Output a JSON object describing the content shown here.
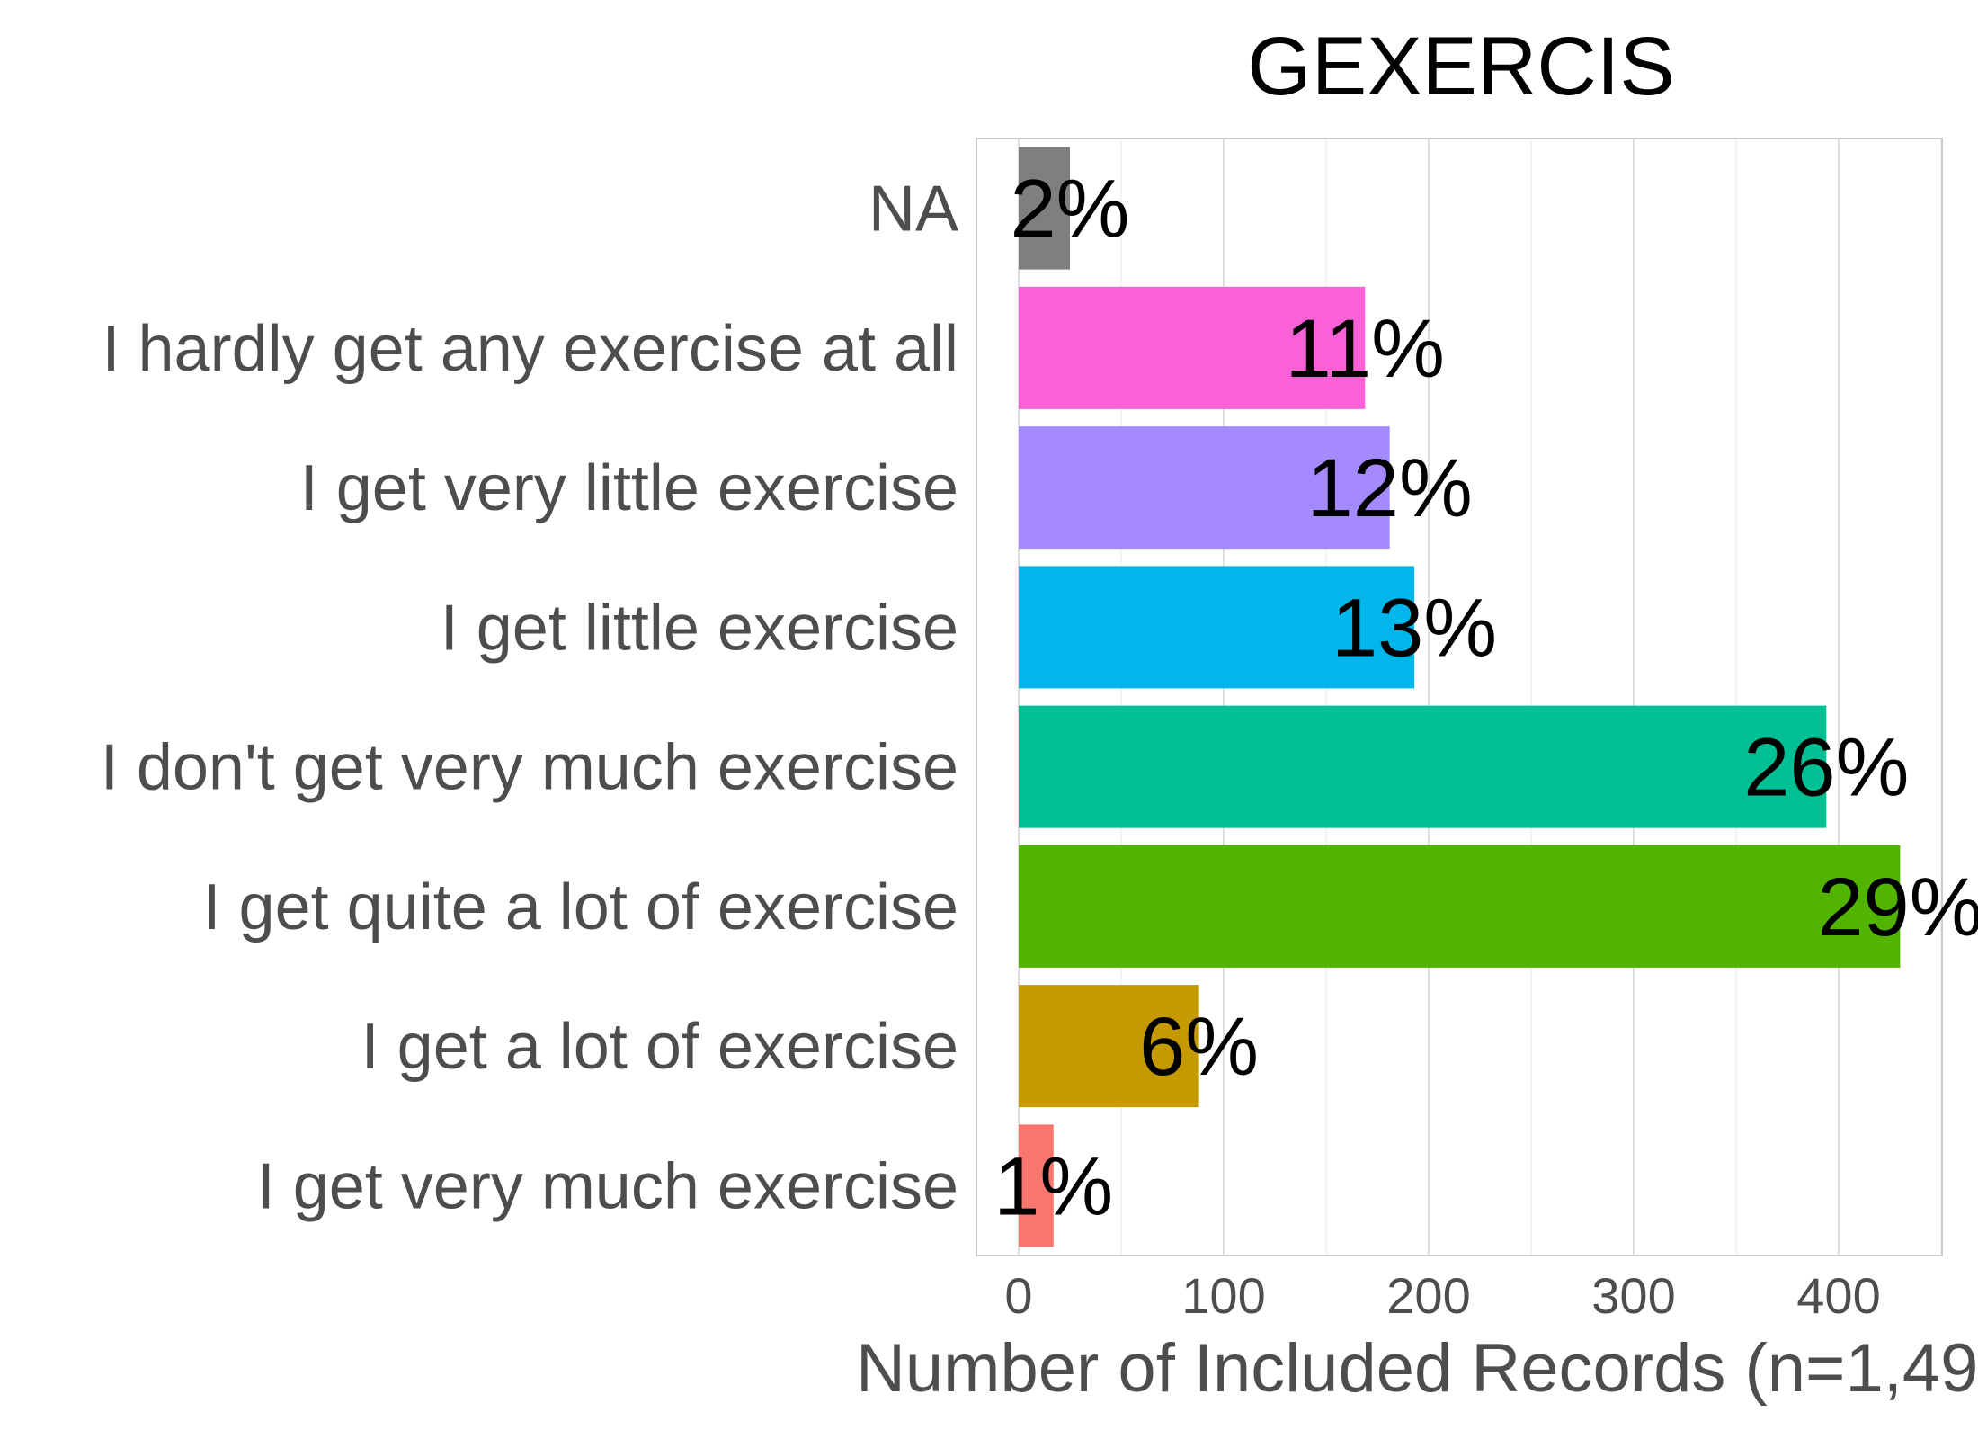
{
  "chart_data": {
    "type": "bar",
    "orientation": "horizontal",
    "title": "GEXERCIS",
    "xlabel": "Number of Included Records (n=1,49",
    "ylabel": "",
    "categories": [
      "NA",
      "I hardly get any exercise at all",
      "I get very little exercise",
      "I get little exercise",
      "I don't get very much exercise",
      "I get quite a lot of exercise",
      "I get a lot of exercise",
      "I get very much exercise"
    ],
    "values": [
      25,
      169,
      181,
      193,
      394,
      430,
      88,
      17
    ],
    "labels": [
      "2%",
      "11%",
      "12%",
      "13%",
      "26%",
      "29%",
      "6%",
      "1%"
    ],
    "colors": [
      "#7f7f7f",
      "#fb61d7",
      "#a58aff",
      "#00b6eb",
      "#00c094",
      "#53b400",
      "#c49a00",
      "#f8766d"
    ],
    "xlim": [
      -20,
      450
    ],
    "xticks": [
      "0",
      "100",
      "200",
      "300",
      "400"
    ],
    "grid": true,
    "legend": "none"
  }
}
